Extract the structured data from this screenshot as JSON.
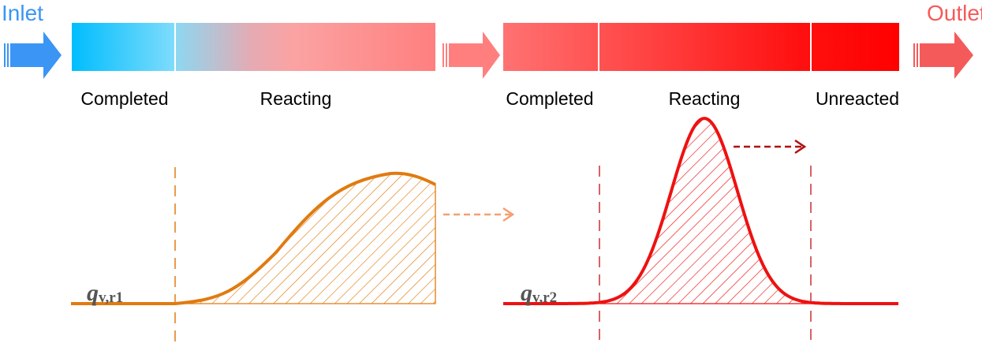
{
  "inlet": {
    "label": "Inlet",
    "color": "#3a95f5"
  },
  "outlet": {
    "label": "Outlet",
    "color": "#f55a5a"
  },
  "reactor1": {
    "zones": [
      "Completed",
      "Reacting"
    ],
    "curve_label": {
      "symbol": "q",
      "subscript": "v,r1"
    },
    "color": "#e07b10"
  },
  "reactor2": {
    "zones": [
      "Completed",
      "Reacting",
      "Unreacted"
    ],
    "curve_label": {
      "symbol": "q",
      "subscript": "v,r2"
    },
    "color": "#ee1111"
  }
}
